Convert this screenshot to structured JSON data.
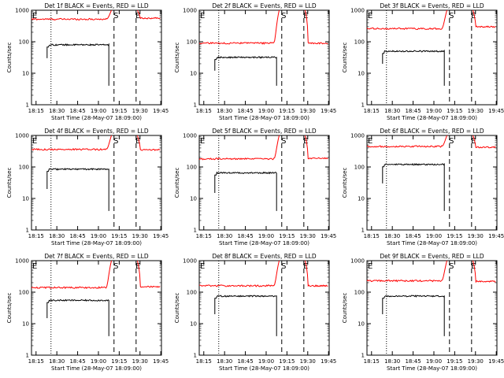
{
  "figure": {
    "ylabel": "Counts/sec",
    "xlabel": "Start Time (28-May-07 18:09:00)",
    "x_tick_labels": [
      "18:15",
      "18:30",
      "18:45",
      "19:00",
      "19:15",
      "19:30",
      "19:45"
    ],
    "y_tick_labels": [
      "1",
      "10",
      "100",
      "1000"
    ],
    "markers": [
      "E",
      "S",
      "E"
    ],
    "colors": {
      "events": "#000000",
      "lld": "#ff0000",
      "background": "#ffffff"
    }
  },
  "chart_data": [
    {
      "type": "line",
      "title": "Det 1f BLACK = Events, RED = LLD",
      "ylim": [
        1,
        1000
      ],
      "yscale": "log",
      "series": [
        {
          "values": {
            "events_level": 80,
            "events_start": 30,
            "lld_level": 520,
            "lld_peak": 1000,
            "lld_after": 560
          }
        }
      ]
    },
    {
      "type": "line",
      "title": "Det 2f BLACK = Events, RED = LLD",
      "ylim": [
        1,
        1000
      ],
      "yscale": "log",
      "series": [
        {
          "values": {
            "events_level": 32,
            "events_start": 12,
            "lld_level": 90,
            "lld_peak": 1000,
            "lld_after": 90
          }
        }
      ]
    },
    {
      "type": "line",
      "title": "Det 3f BLACK = Events, RED = LLD",
      "ylim": [
        1,
        1000
      ],
      "yscale": "log",
      "series": [
        {
          "values": {
            "events_level": 50,
            "events_start": 20,
            "lld_level": 260,
            "lld_peak": 1000,
            "lld_after": 300
          }
        }
      ]
    },
    {
      "type": "line",
      "title": "Det 4f BLACK = Events, RED = LLD",
      "ylim": [
        1,
        1000
      ],
      "yscale": "log",
      "series": [
        {
          "values": {
            "events_level": 85,
            "events_start": 20,
            "lld_level": 360,
            "lld_peak": 1000,
            "lld_after": 350
          }
        }
      ]
    },
    {
      "type": "line",
      "title": "Det 5f BLACK = Events, RED = LLD",
      "ylim": [
        1,
        1000
      ],
      "yscale": "log",
      "series": [
        {
          "values": {
            "events_level": 65,
            "events_start": 15,
            "lld_level": 180,
            "lld_peak": 1000,
            "lld_after": 190
          }
        }
      ]
    },
    {
      "type": "line",
      "title": "Det 6f BLACK = Events, RED = LLD",
      "ylim": [
        1,
        1000
      ],
      "yscale": "log",
      "series": [
        {
          "values": {
            "events_level": 120,
            "events_start": 30,
            "lld_level": 450,
            "lld_peak": 1000,
            "lld_after": 420
          }
        }
      ]
    },
    {
      "type": "line",
      "title": "Det 7f BLACK = Events, RED = LLD",
      "ylim": [
        1,
        1000
      ],
      "yscale": "log",
      "series": [
        {
          "values": {
            "events_level": 55,
            "events_start": 15,
            "lld_level": 140,
            "lld_peak": 1000,
            "lld_after": 150
          }
        }
      ]
    },
    {
      "type": "line",
      "title": "Det 8f BLACK = Events, RED = LLD",
      "ylim": [
        1,
        1000
      ],
      "yscale": "log",
      "series": [
        {
          "values": {
            "events_level": 75,
            "events_start": 20,
            "lld_level": 160,
            "lld_peak": 1000,
            "lld_after": 160
          }
        }
      ]
    },
    {
      "type": "line",
      "title": "Det 9f BLACK = Events, RED = LLD",
      "ylim": [
        1,
        1000
      ],
      "yscale": "log",
      "series": [
        {
          "values": {
            "events_level": 75,
            "events_start": 20,
            "lld_level": 230,
            "lld_peak": 1000,
            "lld_after": 220
          }
        }
      ]
    }
  ]
}
